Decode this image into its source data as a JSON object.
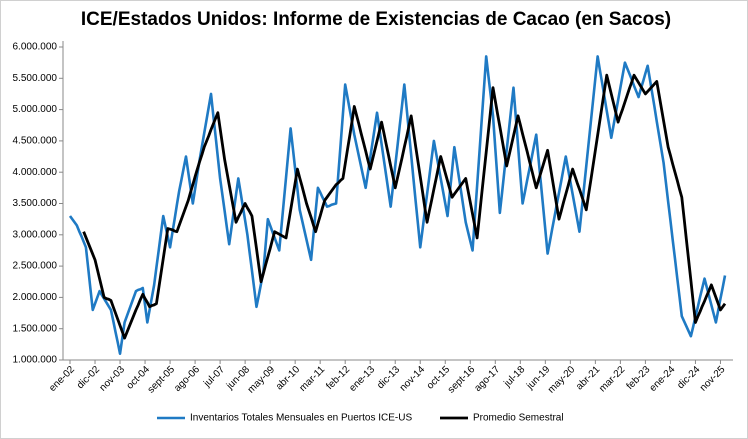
{
  "chart_data": {
    "type": "line",
    "title": "ICE/Estados Unidos: Informe de Existencias de Cacao (en Sacos)",
    "categories": [
      "ene-02",
      null,
      null,
      null,
      null,
      null,
      null,
      null,
      null,
      null,
      null,
      "dic-02",
      null,
      null,
      null,
      null,
      null,
      null,
      null,
      null,
      null,
      null,
      "nov-03",
      null,
      null,
      null,
      null,
      null,
      null,
      null,
      null,
      null,
      null,
      "oct-04",
      null,
      null,
      null,
      null,
      null,
      null,
      null,
      null,
      null,
      null,
      "sept-05",
      null,
      null,
      null,
      null,
      null,
      null,
      null,
      null,
      null,
      null,
      "ago-06",
      null,
      null,
      null,
      null,
      null,
      null,
      null,
      null,
      null,
      null,
      "jul-07",
      null,
      null,
      null,
      null,
      null,
      null,
      null,
      null,
      null,
      null,
      "jun-08",
      null,
      null,
      null,
      null,
      null,
      null,
      null,
      null,
      null,
      null,
      "may-09",
      null,
      null,
      null,
      null,
      null,
      null,
      null,
      null,
      null,
      null,
      "abr-10",
      null,
      null,
      null,
      null,
      null,
      null,
      null,
      null,
      null,
      null,
      "mar-11",
      null,
      null,
      null,
      null,
      null,
      null,
      null,
      null,
      null,
      null,
      "feb-12",
      null,
      null,
      null,
      null,
      null,
      null,
      null,
      null,
      null,
      null,
      "ene-13",
      null,
      null,
      null,
      null,
      null,
      null,
      null,
      null,
      null,
      null,
      "dic-13",
      null,
      null,
      null,
      null,
      null,
      null,
      null,
      null,
      null,
      null,
      "nov-14",
      null,
      null,
      null,
      null,
      null,
      null,
      null,
      null,
      null,
      null,
      "oct-15",
      null,
      null,
      null,
      null,
      null,
      null,
      null,
      null,
      null,
      null,
      "sept-16",
      null,
      null,
      null,
      null,
      null,
      null,
      null,
      null,
      null,
      null,
      "ago-17",
      null,
      null,
      null,
      null,
      null,
      null,
      null,
      null,
      null,
      null,
      "jul-18",
      null,
      null,
      null,
      null,
      null,
      null,
      null,
      null,
      null,
      null,
      "jun-19",
      null,
      null,
      null,
      null,
      null,
      null,
      null,
      null,
      null,
      null,
      "may-20",
      null,
      null,
      null,
      null,
      null,
      null,
      null,
      null,
      null,
      null,
      "abr-21",
      null,
      null,
      null,
      null,
      null,
      null,
      null,
      null,
      null,
      null,
      "mar-22",
      null,
      null,
      null,
      null,
      null,
      null,
      null,
      null,
      null,
      null,
      "feb-23",
      null,
      null,
      null,
      null,
      null,
      null,
      null,
      null,
      null,
      null,
      "ene-24",
      null,
      null,
      null,
      null,
      null,
      null,
      null,
      null,
      null,
      null,
      "dic-24",
      null,
      null,
      null,
      null,
      null,
      null,
      null,
      null,
      null,
      null,
      "nov-25",
      null,
      null
    ],
    "series": [
      {
        "name": "Inventarios Totales Mensuales en Puertos ICE-US",
        "color": "#1f7ac4",
        "width": 2.6,
        "values": [
          3300000,
          3250000,
          3200000,
          3150000,
          3060000,
          2980000,
          2890000,
          2800000,
          2470000,
          2130000,
          1800000,
          1900000,
          2000000,
          2100000,
          2040000,
          1980000,
          1920000,
          1860000,
          1800000,
          1630000,
          1450000,
          1280000,
          1100000,
          1350000,
          1600000,
          1700000,
          1800000,
          1900000,
          2000000,
          2100000,
          2120000,
          2130000,
          2150000,
          1880000,
          1600000,
          1800000,
          2000000,
          2200000,
          2480000,
          2750000,
          3030000,
          3300000,
          3130000,
          2970000,
          2800000,
          3030000,
          3250000,
          3480000,
          3700000,
          3880000,
          4070000,
          4250000,
          4000000,
          3750000,
          3500000,
          3730000,
          3970000,
          4200000,
          4410000,
          4620000,
          4830000,
          5040000,
          5250000,
          4910000,
          4580000,
          4240000,
          3900000,
          3640000,
          3380000,
          3110000,
          2850000,
          3110000,
          3380000,
          3640000,
          3900000,
          3680000,
          3450000,
          3230000,
          3000000,
          2710000,
          2430000,
          2140000,
          1850000,
          2030000,
          2220000,
          2400000,
          2830000,
          3250000,
          3150000,
          3050000,
          2950000,
          2850000,
          2750000,
          3140000,
          3530000,
          3920000,
          4310000,
          4700000,
          4380000,
          4050000,
          3730000,
          3400000,
          3240000,
          3080000,
          2920000,
          2760000,
          2600000,
          2980000,
          3370000,
          3750000,
          3680000,
          3600000,
          3530000,
          3450000,
          3460000,
          3480000,
          3490000,
          3500000,
          3980000,
          4450000,
          4930000,
          5400000,
          5200000,
          5000000,
          4800000,
          4600000,
          4430000,
          4260000,
          4090000,
          3920000,
          3750000,
          3990000,
          4230000,
          4470000,
          4710000,
          4950000,
          4700000,
          4450000,
          4200000,
          3950000,
          3700000,
          3450000,
          3770000,
          4100000,
          4420000,
          4750000,
          5070000,
          5400000,
          5030000,
          4650000,
          4280000,
          3900000,
          3530000,
          3170000,
          2800000,
          3080000,
          3370000,
          3650000,
          3930000,
          4220000,
          4500000,
          4300000,
          4100000,
          3900000,
          3700000,
          3500000,
          3300000,
          3670000,
          4030000,
          4400000,
          4160000,
          3920000,
          3680000,
          3440000,
          3200000,
          3050000,
          2900000,
          2750000,
          3270000,
          3780000,
          4300000,
          4820000,
          5330000,
          5850000,
          5530000,
          5220000,
          4900000,
          4380000,
          3870000,
          3350000,
          3680000,
          4020000,
          4350000,
          4680000,
          5020000,
          5350000,
          4890000,
          4430000,
          3960000,
          3500000,
          3680000,
          3870000,
          4050000,
          4230000,
          4420000,
          4600000,
          4220000,
          3840000,
          3460000,
          3080000,
          2700000,
          2890000,
          3090000,
          3280000,
          3480000,
          3670000,
          3860000,
          4060000,
          4250000,
          4050000,
          3850000,
          3650000,
          3450000,
          3250000,
          3050000,
          3400000,
          3750000,
          4100000,
          4450000,
          4800000,
          5150000,
          5500000,
          5850000,
          5630000,
          5420000,
          5200000,
          4980000,
          4770000,
          4550000,
          4750000,
          4950000,
          5150000,
          5350000,
          5550000,
          5750000,
          5660000,
          5570000,
          5480000,
          5380000,
          5290000,
          5200000,
          5330000,
          5450000,
          5580000,
          5700000,
          5480000,
          5260000,
          5040000,
          4810000,
          4590000,
          4370000,
          4150000,
          3840000,
          3530000,
          3230000,
          2920000,
          2620000,
          2310000,
          2010000,
          1700000,
          1620000,
          1540000,
          1460000,
          1380000,
          1530000,
          1690000,
          1840000,
          2000000,
          2150000,
          2300000,
          2160000,
          2020000,
          1880000,
          1740000,
          1600000,
          1790000,
          1980000,
          2160000,
          2350000
        ]
      },
      {
        "name": "Promedio Semestral",
        "color": "#000000",
        "width": 2.8,
        "values": [
          null,
          null,
          null,
          null,
          null,
          null,
          3050000,
          2960000,
          2870000,
          2780000,
          2690000,
          2600000,
          2450000,
          2300000,
          2150000,
          2000000,
          1980000,
          1970000,
          1950000,
          1850000,
          1750000,
          1650000,
          1550000,
          1450000,
          1350000,
          1440000,
          1530000,
          1620000,
          1710000,
          1800000,
          1880000,
          1970000,
          2050000,
          1980000,
          1920000,
          1850000,
          1870000,
          1880000,
          1900000,
          2140000,
          2380000,
          2620000,
          2860000,
          3100000,
          3090000,
          3080000,
          3060000,
          3050000,
          3150000,
          3250000,
          3350000,
          3450000,
          3550000,
          3680000,
          3800000,
          3930000,
          4050000,
          4170000,
          4280000,
          4400000,
          4490000,
          4580000,
          4680000,
          4770000,
          4860000,
          4950000,
          4700000,
          4450000,
          4200000,
          4000000,
          3800000,
          3600000,
          3400000,
          3200000,
          3280000,
          3350000,
          3430000,
          3500000,
          3430000,
          3370000,
          3300000,
          3040000,
          2780000,
          2510000,
          2250000,
          2380000,
          2520000,
          2650000,
          2780000,
          2920000,
          3050000,
          3030000,
          3010000,
          2990000,
          2970000,
          2950000,
          3170000,
          3390000,
          3610000,
          3830000,
          4050000,
          3910000,
          3780000,
          3640000,
          3500000,
          3390000,
          3280000,
          3160000,
          3050000,
          3180000,
          3300000,
          3430000,
          3550000,
          3600000,
          3650000,
          3700000,
          3750000,
          3800000,
          3830000,
          3870000,
          3900000,
          4130000,
          4360000,
          4580000,
          4810000,
          5050000,
          4910000,
          4770000,
          4620000,
          4480000,
          4340000,
          4190000,
          4050000,
          4200000,
          4350000,
          4500000,
          4650000,
          4800000,
          4630000,
          4450000,
          4280000,
          4100000,
          3930000,
          3750000,
          3910000,
          4070000,
          4230000,
          4400000,
          4560000,
          4730000,
          4900000,
          4660000,
          4410000,
          4170000,
          3930000,
          3690000,
          3440000,
          3200000,
          3380000,
          3550000,
          3730000,
          3900000,
          4080000,
          4250000,
          4120000,
          3990000,
          3860000,
          3730000,
          3600000,
          3650000,
          3700000,
          3750000,
          3800000,
          3850000,
          3900000,
          3710000,
          3520000,
          3330000,
          3140000,
          2950000,
          3290000,
          3640000,
          3980000,
          4320000,
          4660000,
          5010000,
          5350000,
          5140000,
          4930000,
          4730000,
          4520000,
          4310000,
          4100000,
          4260000,
          4420000,
          4580000,
          4740000,
          4900000,
          4760000,
          4610000,
          4470000,
          4330000,
          4180000,
          4040000,
          3890000,
          3750000,
          3870000,
          3990000,
          4110000,
          4230000,
          4350000,
          4130000,
          3910000,
          3690000,
          3470000,
          3250000,
          3380000,
          3520000,
          3650000,
          3780000,
          3920000,
          4050000,
          3940000,
          3830000,
          3730000,
          3620000,
          3510000,
          3400000,
          3640000,
          3870000,
          4110000,
          4350000,
          4590000,
          4830000,
          5070000,
          5310000,
          5550000,
          5400000,
          5250000,
          5100000,
          4950000,
          4800000,
          4910000,
          5010000,
          5120000,
          5230000,
          5340000,
          5440000,
          5550000,
          5490000,
          5430000,
          5370000,
          5310000,
          5250000,
          5290000,
          5330000,
          5370000,
          5410000,
          5450000,
          5240000,
          5030000,
          4820000,
          4610000,
          4400000,
          4270000,
          4130000,
          4000000,
          3870000,
          3730000,
          3600000,
          3270000,
          2930000,
          2600000,
          2270000,
          1930000,
          1600000,
          1690000,
          1770000,
          1860000,
          1940000,
          2030000,
          2110000,
          2200000,
          2100000,
          2000000,
          1900000,
          1800000,
          1850000,
          1900000
        ]
      }
    ],
    "ylim": [
      1000000,
      6000000
    ],
    "yticks": [
      {
        "value": 1000000,
        "label": "1.000.000"
      },
      {
        "value": 1500000,
        "label": "1.500.000"
      },
      {
        "value": 2000000,
        "label": "2.000.000"
      },
      {
        "value": 2500000,
        "label": "2.500.000"
      },
      {
        "value": 3000000,
        "label": "3.000.000"
      },
      {
        "value": 3500000,
        "label": "3.500.000"
      },
      {
        "value": 4000000,
        "label": "4.000.000"
      },
      {
        "value": 4500000,
        "label": "4.500.000"
      },
      {
        "value": 5000000,
        "label": "5.000.000"
      },
      {
        "value": 5500000,
        "label": "5.500.000"
      },
      {
        "value": 6000000,
        "label": "6.000.000"
      }
    ],
    "grid": false,
    "legend": "bottom"
  }
}
